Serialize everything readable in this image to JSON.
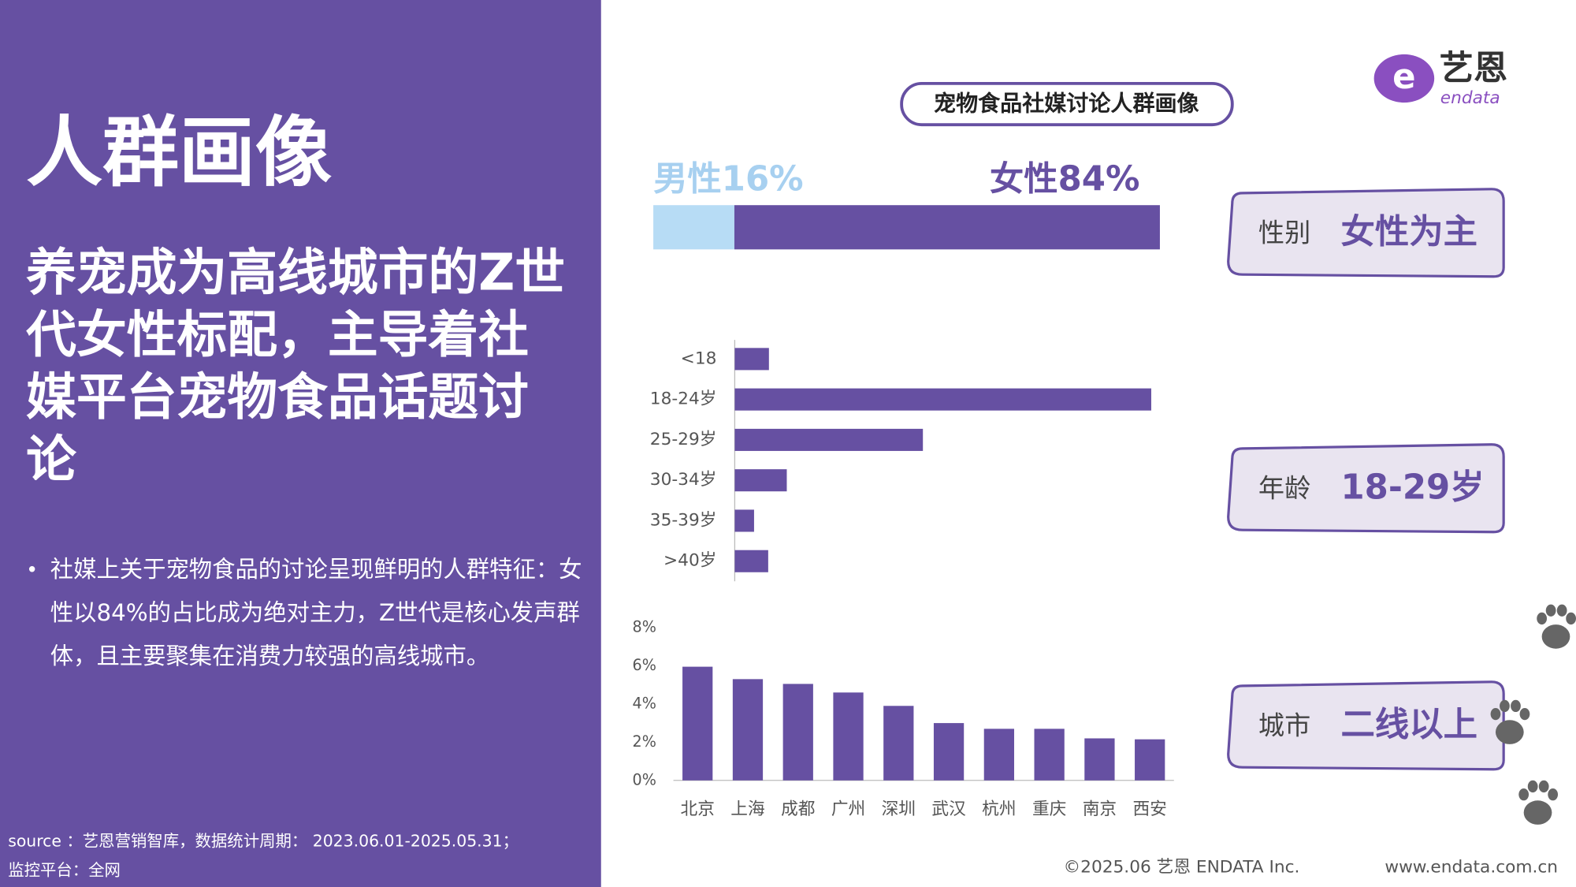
{
  "left": {
    "title": "人群画像",
    "headline": "养宠成为高线城市的Z世代女性标配，主导着社媒平台宠物食品话题讨论",
    "bullet": "社媒上关于宠物食品的讨论呈现鲜明的人群特征：女性以84%的占比成为绝对主力，Z世代是核心发声群体，且主要聚集在消费力较强的高线城市。",
    "source": "source ：艺恩营销智库，数据统计周期： 2023.06.01-2025.05.31；",
    "platform": "监控平台：全网"
  },
  "logo": {
    "cn": "艺恩",
    "en": "endata"
  },
  "panel_title": "宠物食品社媒讨论人群画像",
  "chart_data": [
    {
      "type": "stacked_hbar",
      "series": [
        {
          "name": "男性",
          "color": "#b7dcf5",
          "values": [
            16
          ],
          "value_labels": [
            "16%"
          ]
        },
        {
          "name": "女性",
          "color": "#6650a2",
          "values": [
            84
          ],
          "value_labels": [
            "84%"
          ]
        }
      ]
    },
    {
      "type": "hbar",
      "categories": [
        "<18",
        "18-24岁",
        "25-29岁",
        "30-34岁",
        "35-39岁",
        ">40岁"
      ],
      "values": [
        4.6,
        56.0,
        25.3,
        7.0,
        2.6,
        4.5
      ],
      "color": "#6650a2"
    },
    {
      "type": "bar",
      "categories": [
        "北京",
        "上海",
        "成都",
        "广州",
        "深圳",
        "武汉",
        "杭州",
        "重庆",
        "南京",
        "西安"
      ],
      "values": [
        5.95,
        5.3,
        5.05,
        4.6,
        3.9,
        3.0,
        2.7,
        2.7,
        2.2,
        2.15
      ],
      "color": "#6650a2",
      "ylim": [
        0,
        8
      ],
      "yticks": [
        {
          "value": 0,
          "label": "0%"
        },
        {
          "value": 2,
          "label": "2%"
        },
        {
          "value": 4,
          "label": "4%"
        },
        {
          "value": 6,
          "label": "6%"
        },
        {
          "value": 8,
          "label": "8%"
        }
      ]
    }
  ],
  "summary": [
    {
      "label": "性别",
      "value": "女性为主"
    },
    {
      "label": "年龄",
      "value": "18-29岁"
    },
    {
      "label": "城市",
      "value": "二线以上"
    }
  ],
  "footer": {
    "copyright": "©2025.06  艺恩 ENDATA Inc.",
    "url": "www.endata.com.cn"
  }
}
